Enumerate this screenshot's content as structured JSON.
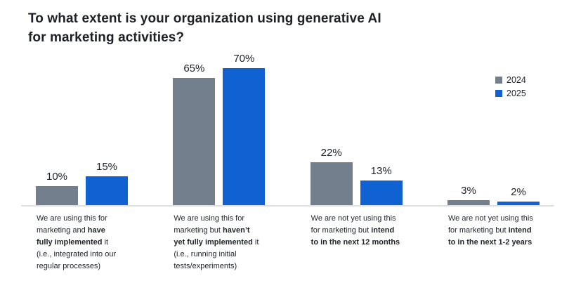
{
  "title": {
    "line1": "To what extent is your organization using generative AI",
    "line2": "for marketing activities?"
  },
  "colors": {
    "series_2024": "#747f8e",
    "series_2025": "#1062d3",
    "axis_line": "#dcdee1",
    "text": "#1d2127"
  },
  "legend": {
    "items": [
      {
        "label": "2024",
        "color": "#747f8e"
      },
      {
        "label": "2025",
        "color": "#1062d3"
      }
    ]
  },
  "chart_data": {
    "type": "bar",
    "title": "To what extent is your organization using generative AI for marketing activities?",
    "unit": "%",
    "value_label_format": "{v}%",
    "grid": false,
    "legend_position": "right",
    "ylim": [
      0,
      75
    ],
    "categories": [
      "We are using this for marketing and have fully implemented it (i.e., integrated into our regular processes)",
      "We are using this for marketing but haven’t yet fully implemented it (i.e., running initial tests/experiments)",
      "We are not yet using this for marketing but intend to in the next 12 months",
      "We are not yet using this for marketing but intend to in the next 1-2 years"
    ],
    "category_lines": [
      [
        [
          {
            "t": "We are using this for",
            "b": false
          }
        ],
        [
          {
            "t": "marketing and ",
            "b": false
          },
          {
            "t": "have",
            "b": true
          }
        ],
        [
          {
            "t": "fully implemented",
            "b": true
          },
          {
            "t": " it",
            "b": false
          }
        ],
        [
          {
            "t": "(i.e., integrated into our",
            "b": false
          }
        ],
        [
          {
            "t": "regular processes)",
            "b": false
          }
        ]
      ],
      [
        [
          {
            "t": "We are using this for",
            "b": false
          }
        ],
        [
          {
            "t": "marketing but ",
            "b": false
          },
          {
            "t": "haven’t",
            "b": true
          }
        ],
        [
          {
            "t": "yet fully implemented",
            "b": true
          },
          {
            "t": " it",
            "b": false
          }
        ],
        [
          {
            "t": "(i.e., running initial",
            "b": false
          }
        ],
        [
          {
            "t": "tests/experiments)",
            "b": false
          }
        ]
      ],
      [
        [
          {
            "t": "We are not yet using this",
            "b": false
          }
        ],
        [
          {
            "t": "for marketing but ",
            "b": false
          },
          {
            "t": "intend",
            "b": true
          }
        ],
        [
          {
            "t": "to in the next 12 months",
            "b": true
          }
        ]
      ],
      [
        [
          {
            "t": "We are not yet using this",
            "b": false
          }
        ],
        [
          {
            "t": "for marketing but ",
            "b": false
          },
          {
            "t": "intend",
            "b": true
          }
        ],
        [
          {
            "t": "to in the next 1-2 years",
            "b": true
          }
        ]
      ]
    ],
    "series": [
      {
        "name": "2024",
        "values": [
          10,
          65,
          22,
          3
        ]
      },
      {
        "name": "2025",
        "values": [
          15,
          70,
          13,
          2
        ]
      }
    ]
  }
}
